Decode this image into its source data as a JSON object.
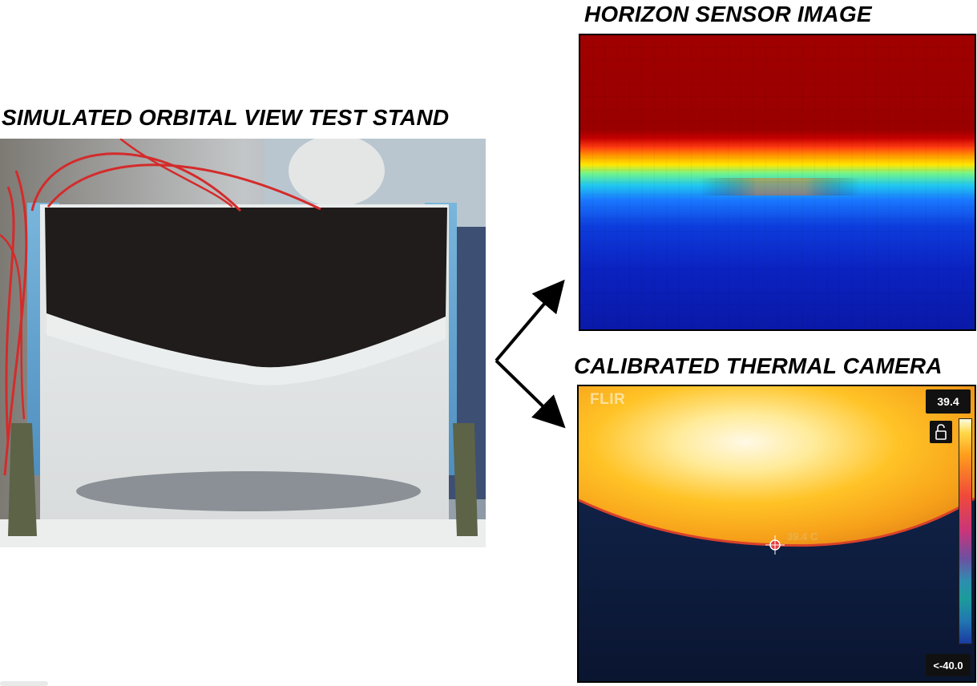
{
  "titles": {
    "stand": "SIMULATED ORBITAL VIEW TEST STAND",
    "horizon": "HORIZON SENSOR IMAGE",
    "thermal": "CALIBRATED THERMAL CAMERA"
  },
  "thermal": {
    "logo": "FLIR",
    "max_readout": "39.4",
    "min_readout": "<-40.0",
    "spot_label": "39.4 C"
  },
  "colors": {
    "horizon_hot": "#9b0000",
    "horizon_cold": "#0a1aa8",
    "thermal_warm": "#ffc12a",
    "thermal_cold": "#0b1430"
  },
  "icons": [
    "arrow-up-right-icon",
    "arrow-down-right-icon",
    "lock-icon",
    "spot-meter-icon"
  ]
}
